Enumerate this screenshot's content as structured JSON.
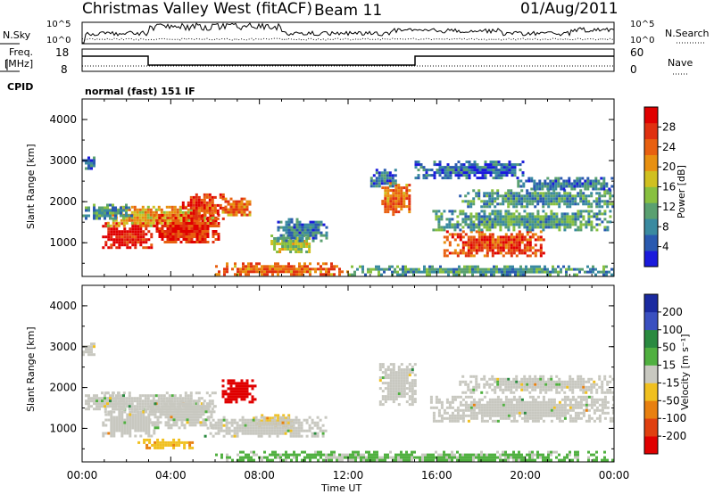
{
  "header": {
    "title": "Christmas Valley West (fitACF)",
    "beam": "Beam 11",
    "date": "01/Aug/2011"
  },
  "panels": {
    "nsky": {
      "label": "N.Sky",
      "ticks": [
        "10^5",
        "10^0"
      ],
      "right_label": "N.Search",
      "right_ticks": [
        "10^5",
        "10^0"
      ]
    },
    "freq": {
      "label_line1": "Freq.",
      "label_line2": "[MHz]",
      "ticks": [
        "18",
        "8"
      ],
      "right_label": "Nave",
      "right_ticks": [
        "60",
        "0"
      ]
    },
    "cpid": {
      "label": "CPID",
      "text": "normal (fast) 151 IF"
    }
  },
  "colors": {
    "power": [
      "#1a1adc",
      "#2a5ab0",
      "#3a8aa0",
      "#5aa070",
      "#88c040",
      "#d0c020",
      "#e89010",
      "#e86010",
      "#e03010",
      "#e00000"
    ],
    "velocity": [
      "#1a2aa0",
      "#3a50c0",
      "#2a8a40",
      "#50b040",
      "#c8c8c0",
      "#f0c020",
      "#e88010",
      "#e04010",
      "#e00000"
    ],
    "ground": "#c8c8c0"
  },
  "chart_data": [
    {
      "type": "heatmap",
      "name": "power",
      "ylabel": "Slant Range [km]",
      "yticks": [
        "4000",
        "3000",
        "2000",
        "1000"
      ],
      "ylim": [
        180,
        4500
      ],
      "xlim_hours": [
        0,
        24
      ],
      "colorbar": {
        "label": "Power [dB]",
        "ticks": [
          "28",
          "24",
          "20",
          "16",
          "12",
          "8",
          "4"
        ],
        "range": [
          0,
          30
        ]
      },
      "regions": [
        {
          "t": [
            0.9,
            3.1
          ],
          "r": [
            850,
            1500
          ],
          "v": 28
        },
        {
          "t": [
            1.0,
            6.0
          ],
          "r": [
            1400,
            1900
          ],
          "v": 18
        },
        {
          "t": [
            3.2,
            6.2
          ],
          "r": [
            1000,
            1700
          ],
          "v": 26
        },
        {
          "t": [
            4.5,
            6.4
          ],
          "r": [
            1600,
            2200
          ],
          "v": 25
        },
        {
          "t": [
            6.3,
            7.6
          ],
          "r": [
            1650,
            2100
          ],
          "v": 22
        },
        {
          "t": [
            8.5,
            10.3
          ],
          "r": [
            750,
            1200
          ],
          "v": 14
        },
        {
          "t": [
            8.8,
            11.0
          ],
          "r": [
            1050,
            1600
          ],
          "v": 7
        },
        {
          "t": [
            0.0,
            2.2
          ],
          "r": [
            1600,
            1950
          ],
          "v": 8
        },
        {
          "t": [
            6.0,
            12.0
          ],
          "r": [
            220,
            520
          ],
          "v": 22
        },
        {
          "t": [
            13.5,
            14.8
          ],
          "r": [
            1700,
            2500
          ],
          "v": 22
        },
        {
          "t": [
            13.0,
            14.2
          ],
          "r": [
            2400,
            2800
          ],
          "v": 6
        },
        {
          "t": [
            16.3,
            20.8
          ],
          "r": [
            700,
            1300
          ],
          "v": 24
        },
        {
          "t": [
            15.8,
            23.8
          ],
          "r": [
            1300,
            1800
          ],
          "v": 10
        },
        {
          "t": [
            17.0,
            24.0
          ],
          "r": [
            1900,
            2300
          ],
          "v": 9
        },
        {
          "t": [
            19.5,
            24.0
          ],
          "r": [
            2300,
            2600
          ],
          "v": 7
        },
        {
          "t": [
            15.0,
            20.0
          ],
          "r": [
            2600,
            3000
          ],
          "v": 5
        },
        {
          "t": [
            12.0,
            24.0
          ],
          "r": [
            250,
            450
          ],
          "v": 9
        },
        {
          "t": [
            0.0,
            0.6
          ],
          "r": [
            2800,
            3100
          ],
          "v": 7
        }
      ]
    },
    {
      "type": "heatmap",
      "name": "velocity",
      "ylabel": "Slant Range [km]",
      "yticks": [
        "4000",
        "3000",
        "2000",
        "1000"
      ],
      "xlabel": "Time UT",
      "xticks": [
        "00:00",
        "04:00",
        "08:00",
        "12:00",
        "16:00",
        "20:00",
        "00:00"
      ],
      "ylim": [
        180,
        4500
      ],
      "xlim_hours": [
        0,
        24
      ],
      "colorbar": {
        "label": "Velocity [m s⁻¹]",
        "ticks": [
          "200",
          "100",
          "50",
          "15",
          "-15",
          "-50",
          "-100",
          "-200"
        ],
        "range": [
          -250,
          250
        ]
      },
      "regions": [
        {
          "t": [
            0.9,
            3.2
          ],
          "r": [
            800,
            1500
          ],
          "v": 0,
          "ground": true
        },
        {
          "t": [
            1.0,
            6.0
          ],
          "r": [
            1400,
            1900
          ],
          "v": 0,
          "ground": true
        },
        {
          "t": [
            3.0,
            6.0
          ],
          "r": [
            1000,
            1700
          ],
          "v": 0,
          "ground": true
        },
        {
          "t": [
            2.5,
            5.0
          ],
          "r": [
            550,
            750
          ],
          "v": -60
        },
        {
          "t": [
            6.3,
            7.8
          ],
          "r": [
            1650,
            2200
          ],
          "v": -230
        },
        {
          "t": [
            7.7,
            9.5
          ],
          "r": [
            1050,
            1350
          ],
          "v": -60
        },
        {
          "t": [
            5.5,
            11.0
          ],
          "r": [
            800,
            1300
          ],
          "v": 0,
          "ground": true
        },
        {
          "t": [
            0.0,
            2.0
          ],
          "r": [
            1500,
            1900
          ],
          "v": 0,
          "ground": true
        },
        {
          "t": [
            13.4,
            15.0
          ],
          "r": [
            1600,
            2600
          ],
          "v": 0,
          "ground": true
        },
        {
          "t": [
            15.7,
            24.0
          ],
          "r": [
            1200,
            1800
          ],
          "v": 0,
          "ground": true
        },
        {
          "t": [
            17.0,
            24.0
          ],
          "r": [
            1900,
            2300
          ],
          "v": 0,
          "ground": true
        },
        {
          "t": [
            6.0,
            24.0
          ],
          "r": [
            200,
            450
          ],
          "v": 45
        },
        {
          "t": [
            0.0,
            0.6
          ],
          "r": [
            2800,
            3100
          ],
          "v": 0,
          "ground": true
        }
      ]
    }
  ]
}
